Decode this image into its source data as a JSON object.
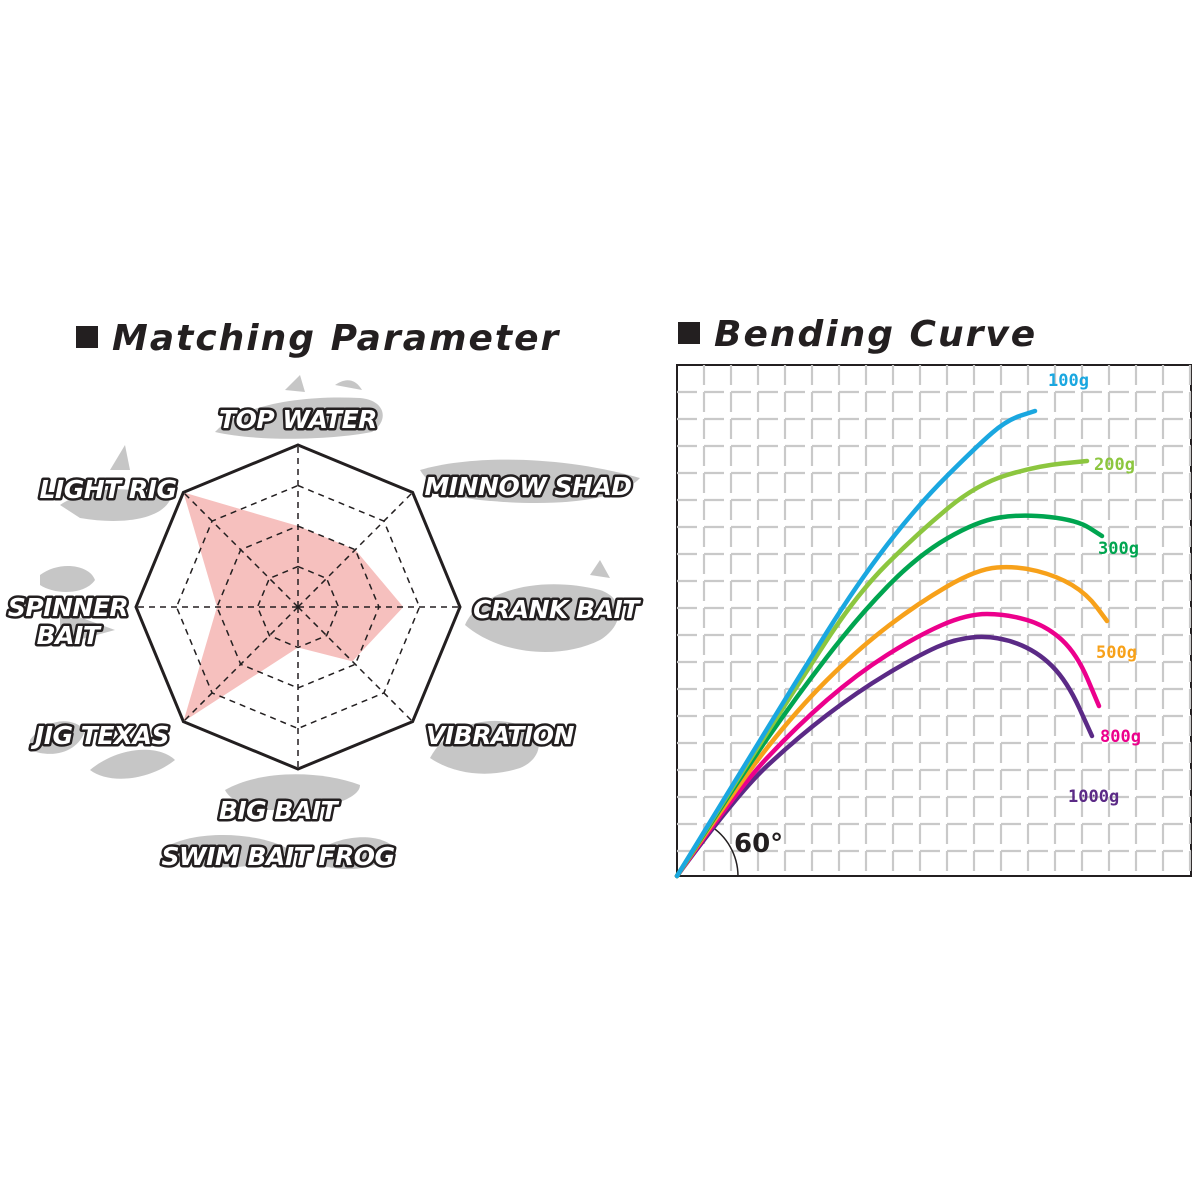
{
  "chart_data": [
    {
      "type": "radar",
      "title": "Matching Parameter",
      "axes": [
        "TOP WATER",
        "MINNOW SHAD",
        "CRANK BAIT",
        "VIBRATION",
        "BIG BAIT\nSWIM BAIT  FROG",
        "JIG  TEXAS",
        "SPINNER\nBAIT",
        "LIGHT RIG"
      ],
      "levels": 4,
      "range": [
        0,
        4
      ],
      "values": [
        2,
        2,
        2.6,
        1.9,
        1,
        4,
        2,
        4
      ],
      "fill_color": "#f5b5b3",
      "grid": "dashed"
    },
    {
      "type": "line",
      "title": "Bending Curve",
      "grid": true,
      "annotation": "60°",
      "series": [
        {
          "name": "100g",
          "color": "#1aa7e0",
          "points": [
            [
              0,
              0
            ],
            [
              60,
              98
            ],
            [
              120,
              196
            ],
            [
              180,
              292
            ],
            [
              240,
              370
            ],
            [
              300,
              430
            ],
            [
              330,
              456
            ],
            [
              358,
              465
            ]
          ]
        },
        {
          "name": "200g",
          "color": "#8cc63f",
          "points": [
            [
              0,
              0
            ],
            [
              60,
              96
            ],
            [
              120,
              190
            ],
            [
              180,
              282
            ],
            [
              240,
              342
            ],
            [
              300,
              392
            ],
            [
              360,
              410
            ],
            [
              410,
              415
            ]
          ]
        },
        {
          "name": "300g",
          "color": "#00a550",
          "points": [
            [
              0,
              0
            ],
            [
              60,
              94
            ],
            [
              120,
              180
            ],
            [
              180,
              258
            ],
            [
              240,
              320
            ],
            [
              300,
              355
            ],
            [
              345,
              362
            ],
            [
              400,
              356
            ],
            [
              425,
              340
            ]
          ]
        },
        {
          "name": "500g",
          "color": "#f7a11a",
          "points": [
            [
              0,
              0
            ],
            [
              60,
              90
            ],
            [
              120,
              166
            ],
            [
              180,
              226
            ],
            [
              240,
              272
            ],
            [
              300,
              307
            ],
            [
              340,
              310
            ],
            [
              380,
              300
            ],
            [
              410,
              282
            ],
            [
              430,
              255
            ]
          ]
        },
        {
          "name": "800g",
          "color": "#ec008c",
          "points": [
            [
              0,
              0
            ],
            [
              60,
              86
            ],
            [
              120,
              150
            ],
            [
              180,
              202
            ],
            [
              240,
              240
            ],
            [
              290,
              262
            ],
            [
              330,
              262
            ],
            [
              370,
              250
            ],
            [
              400,
              222
            ],
            [
              422,
              170
            ]
          ]
        },
        {
          "name": "1000g",
          "color": "#5b2a86",
          "points": [
            [
              0,
              0
            ],
            [
              60,
              82
            ],
            [
              120,
              138
            ],
            [
              180,
              184
            ],
            [
              240,
              220
            ],
            [
              280,
              238
            ],
            [
              320,
              240
            ],
            [
              360,
              225
            ],
            [
              390,
              195
            ],
            [
              415,
              140
            ]
          ]
        }
      ]
    }
  ],
  "labels": {
    "left_title": "Matching Parameter",
    "right_title": "Bending Curve"
  }
}
